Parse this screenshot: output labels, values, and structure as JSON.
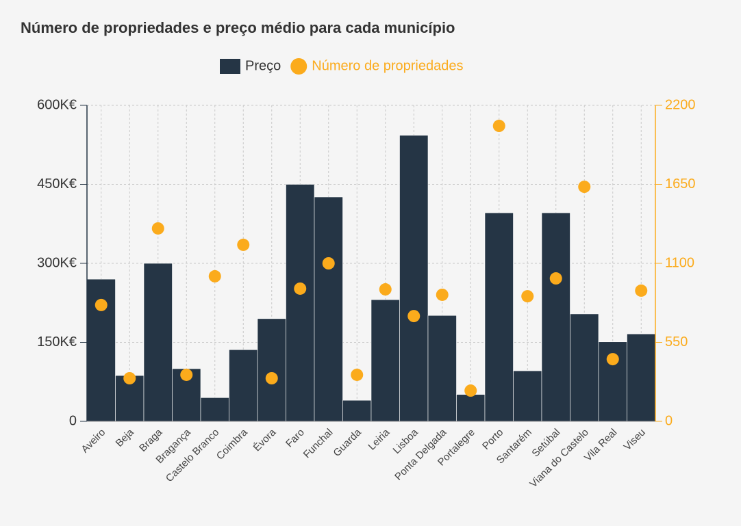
{
  "chart_data": {
    "type": "bar",
    "title": "Número de propriedades e preço médio para cada município",
    "categories": [
      "Aveiro",
      "Beja",
      "Braga",
      "Bragança",
      "Castelo Branco",
      "Coimbra",
      "Évora",
      "Faro",
      "Funchal",
      "Guarda",
      "Leiria",
      "Lisboa",
      "Ponta Delgada",
      "Portalegre",
      "Porto",
      "Santarém",
      "Setúbal",
      "Viana do Castelo",
      "Vila Real",
      "Viseu"
    ],
    "series": [
      {
        "name": "Preço",
        "type": "bar",
        "axis": "y",
        "color": "#253545",
        "values": [
          270000,
          87000,
          300000,
          100000,
          45000,
          136000,
          195000,
          450000,
          426000,
          40000,
          231000,
          543000,
          201000,
          51000,
          396000,
          96000,
          396000,
          204000,
          151000,
          166000
        ]
      },
      {
        "name": "Número de propriedades",
        "type": "scatter",
        "axis": "y2",
        "color": "#fbab1c",
        "values": [
          810,
          300,
          1343,
          324,
          1010,
          1229,
          300,
          924,
          1100,
          324,
          919,
          733,
          881,
          214,
          2057,
          871,
          995,
          1633,
          433,
          910
        ]
      }
    ],
    "ylim": [
      0,
      600000
    ],
    "yticks": [
      {
        "value": 0,
        "label": "0"
      },
      {
        "value": 150000,
        "label": "150K€"
      },
      {
        "value": 300000,
        "label": "300K€"
      },
      {
        "value": 450000,
        "label": "450K€"
      },
      {
        "value": 600000,
        "label": "600K€"
      }
    ],
    "y2lim": [
      0,
      2200
    ],
    "y2ticks": [
      0,
      550,
      1100,
      1650,
      2200
    ],
    "grid": true,
    "legend": "top"
  }
}
